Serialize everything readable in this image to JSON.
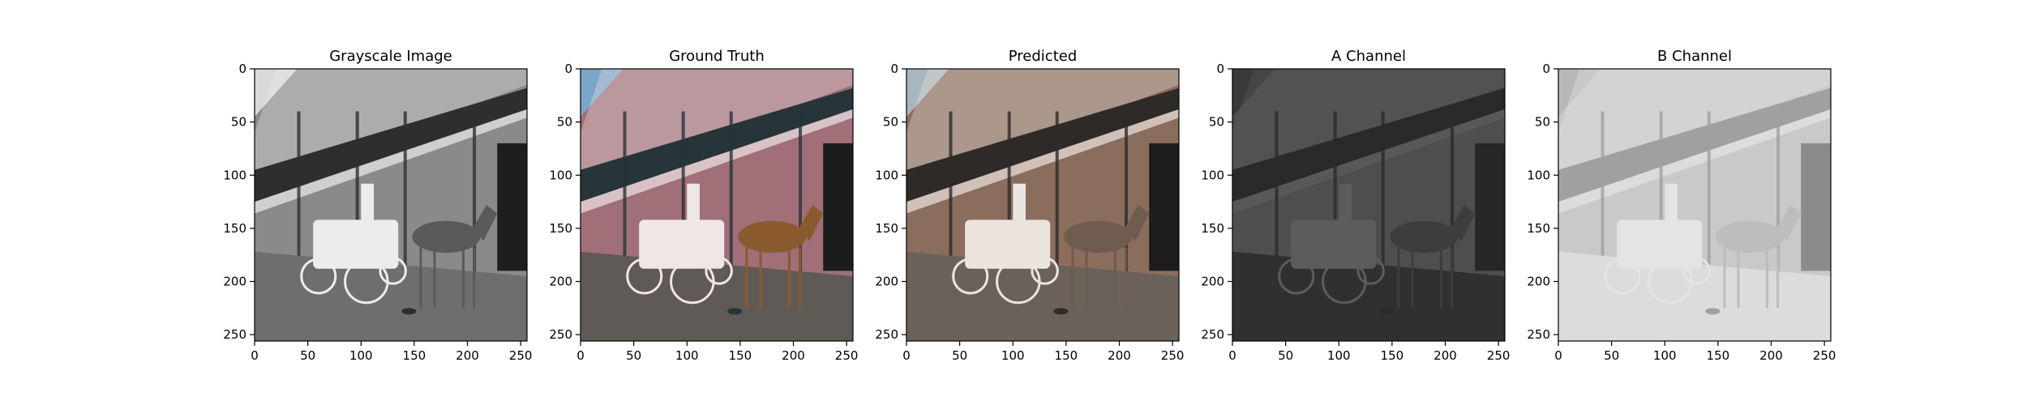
{
  "figure": {
    "background": "#ffffff"
  },
  "chart_data": [
    {
      "type": "image",
      "title": "Grayscale Image",
      "image_description": "grayscale photo: horse-drawn white carriage on a street in front of a building with iron balconies",
      "colormap": "gray",
      "xlim": [
        0,
        256
      ],
      "ylim": [
        256,
        0
      ],
      "xticks": [
        0,
        50,
        100,
        150,
        200,
        250
      ],
      "yticks": [
        0,
        50,
        100,
        150,
        200,
        250
      ],
      "xlabel": "",
      "ylabel": "",
      "grid": false
    },
    {
      "type": "image",
      "title": "Ground Truth",
      "image_description": "color photo: horse-drawn carriage with brown horse, pink building with balconies, blue sky",
      "colormap": "rgb",
      "xlim": [
        0,
        256
      ],
      "ylim": [
        256,
        0
      ],
      "xticks": [
        0,
        50,
        100,
        150,
        200,
        250
      ],
      "yticks": [
        0,
        50,
        100,
        150,
        200,
        250
      ],
      "xlabel": "",
      "ylabel": "",
      "grid": false
    },
    {
      "type": "image",
      "title": "Predicted",
      "image_description": "colorized prediction: muted brownish tones, same carriage scene",
      "colormap": "rgb",
      "xlim": [
        0,
        256
      ],
      "ylim": [
        256,
        0
      ],
      "xticks": [
        0,
        50,
        100,
        150,
        200,
        250
      ],
      "yticks": [
        0,
        50,
        100,
        150,
        200,
        250
      ],
      "xlabel": "",
      "ylabel": "",
      "grid": false
    },
    {
      "type": "image",
      "title": "A Channel",
      "image_description": "dark grayscale A-channel map of the scene",
      "colormap": "gray",
      "xlim": [
        0,
        256
      ],
      "ylim": [
        256,
        0
      ],
      "xticks": [
        0,
        50,
        100,
        150,
        200,
        250
      ],
      "yticks": [
        0,
        50,
        100,
        150,
        200,
        250
      ],
      "xlabel": "",
      "ylabel": "",
      "grid": false
    },
    {
      "type": "image",
      "title": "B Channel",
      "image_description": "light grayscale B-channel map of the scene",
      "colormap": "gray",
      "xlim": [
        0,
        256
      ],
      "ylim": [
        256,
        0
      ],
      "xticks": [
        0,
        50,
        100,
        150,
        200,
        250
      ],
      "yticks": [
        0,
        50,
        100,
        150,
        200,
        250
      ],
      "xlabel": "",
      "ylabel": "",
      "grid": false
    }
  ],
  "panel_colors": {
    "grayscale": {
      "sky": "#d9d9d9",
      "building": "#8a8a8a",
      "balcony": "#2e2e2e",
      "street": "#6e6e6e",
      "door": "#1e1e1e",
      "carriage": "#ececec",
      "horse": "#5a5a5a"
    },
    "ground_truth": {
      "sky": "#7aa6c9",
      "building": "#a06f78",
      "balcony": "#27353a",
      "street": "#5f5a55",
      "door": "#1c1c1c",
      "carriage": "#efe6e6",
      "horse": "#8a5a2e"
    },
    "predicted": {
      "sky": "#a8b6bf",
      "building": "#8b6d5e",
      "balcony": "#2d2a28",
      "street": "#6a625a",
      "door": "#1f1d1b",
      "carriage": "#ece4df",
      "horse": "#6f5c4e"
    },
    "a_channel": {
      "sky": "#3a3a3a",
      "building": "#4e4e4e",
      "balcony": "#2a2a2a",
      "street": "#303030",
      "door": "#262626",
      "carriage": "#5c5c5c",
      "horse": "#3d3d3d"
    },
    "b_channel": {
      "sky": "#b8b8b8",
      "building": "#c9c9c9",
      "balcony": "#a0a0a0",
      "street": "#dcdcdc",
      "door": "#8c8c8c",
      "carriage": "#e4e4e4",
      "horse": "#bdbdbd"
    }
  }
}
